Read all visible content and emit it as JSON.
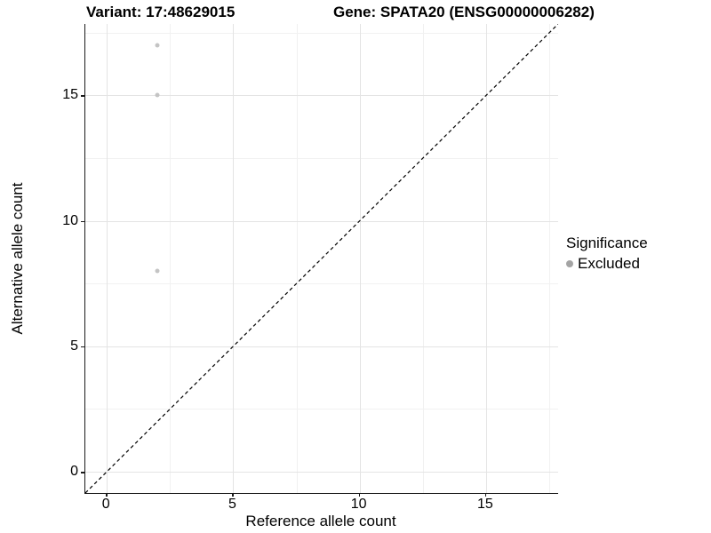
{
  "titles": {
    "variant": "Variant: 17:48629015",
    "gene": "Gene: SPATA20 (ENSG00000006282)"
  },
  "legend": {
    "title": "Significance",
    "items": [
      {
        "label": "Excluded",
        "color": "#a4a4a4"
      }
    ]
  },
  "chart_data": {
    "type": "scatter",
    "title": "Variant: 17:48629015 — Gene: SPATA20 (ENSG00000006282)",
    "xlabel": "Reference allele count",
    "ylabel": "Alternative allele count",
    "xlim": [
      -0.85,
      17.85
    ],
    "ylim": [
      -0.85,
      17.85
    ],
    "x_major_ticks": [
      0,
      5,
      10,
      15
    ],
    "y_major_ticks": [
      0,
      5,
      10,
      15
    ],
    "x_minor_ticks": [
      2.5,
      7.5,
      12.5,
      17.5
    ],
    "y_minor_ticks": [
      2.5,
      7.5,
      12.5,
      17.5
    ],
    "grid": true,
    "legend_position": "right",
    "series": [
      {
        "name": "Excluded",
        "color": "#c4c4c4",
        "marker_size_px": 5,
        "points": [
          [
            2,
            17
          ],
          [
            2,
            15
          ],
          [
            2,
            8
          ]
        ]
      }
    ],
    "identity_line": {
      "type": "abline",
      "slope": 1,
      "intercept": 0,
      "style": "dashed",
      "color": "#000000"
    }
  }
}
